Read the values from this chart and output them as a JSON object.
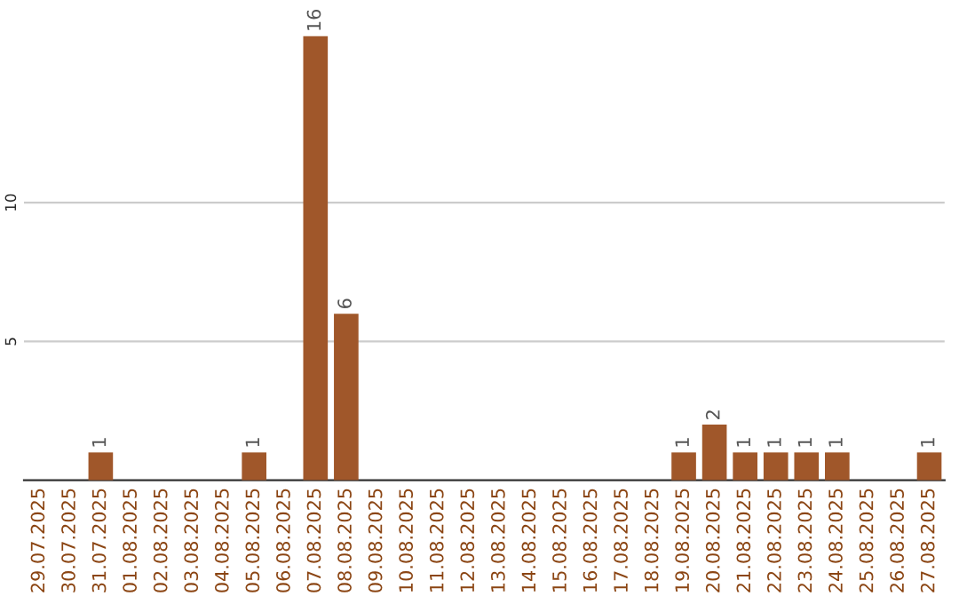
{
  "chart_data": {
    "type": "bar",
    "categories": [
      "29.07.2025",
      "30.07.2025",
      "31.07.2025",
      "01.08.2025",
      "02.08.2025",
      "03.08.2025",
      "04.08.2025",
      "05.08.2025",
      "06.08.2025",
      "07.08.2025",
      "08.08.2025",
      "09.08.2025",
      "10.08.2025",
      "11.08.2025",
      "12.08.2025",
      "13.08.2025",
      "14.08.2025",
      "15.08.2025",
      "16.08.2025",
      "17.08.2025",
      "18.08.2025",
      "19.08.2025",
      "20.08.2025",
      "21.08.2025",
      "22.08.2025",
      "23.08.2025",
      "24.08.2025",
      "25.08.2025",
      "26.08.2025",
      "27.08.2025"
    ],
    "values": [
      0,
      0,
      1,
      0,
      0,
      0,
      0,
      1,
      0,
      16,
      6,
      0,
      0,
      0,
      0,
      0,
      0,
      0,
      0,
      0,
      0,
      1,
      2,
      1,
      1,
      1,
      1,
      0,
      0,
      1
    ],
    "value_labels": [
      null,
      null,
      "1",
      null,
      null,
      null,
      null,
      "1",
      null,
      "16",
      "6",
      null,
      null,
      null,
      null,
      null,
      null,
      null,
      null,
      null,
      null,
      "1",
      "2",
      "1",
      "1",
      "1",
      "1",
      null,
      null,
      "1"
    ],
    "color": "#a0572a",
    "ylim": [
      0,
      16
    ],
    "yticks": [
      5,
      10
    ],
    "grid": "y"
  }
}
